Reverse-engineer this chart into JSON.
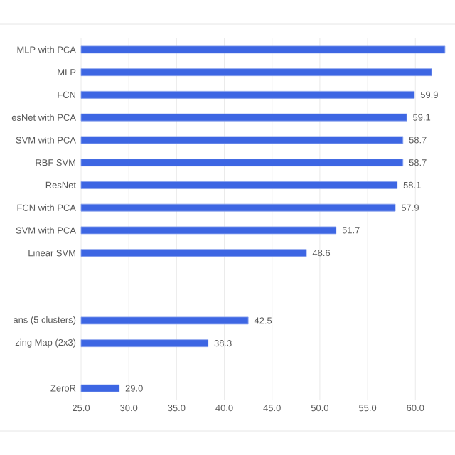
{
  "chart_data": {
    "type": "bar",
    "orientation": "horizontal",
    "categories": [
      "MLP with PCA",
      "MLP",
      "FCN",
      "esNet with PCA",
      "SVM with PCA",
      "RBF SVM",
      "ResNet",
      "FCN with PCA",
      "SVM with PCA",
      "Linear SVM",
      null,
      null,
      "ans (5 clusters)",
      "zing Map (2x3)",
      null,
      "ZeroR"
    ],
    "values": [
      63.1,
      61.7,
      59.9,
      59.1,
      58.7,
      58.7,
      58.1,
      57.9,
      51.7,
      48.6,
      null,
      null,
      42.5,
      38.3,
      null,
      29.0
    ],
    "value_labels": [
      null,
      null,
      "59.9",
      "59.1",
      "58.7",
      "58.7",
      "58.1",
      "57.9",
      "51.7",
      "48.6",
      null,
      null,
      "42.5",
      "38.3",
      null,
      "29.0"
    ],
    "color": "#3d66e3",
    "xlim": [
      25,
      64
    ],
    "xticks": [
      {
        "value": 25,
        "label": "25.0"
      },
      {
        "value": 30,
        "label": "30.0"
      },
      {
        "value": 35,
        "label": "35.0"
      },
      {
        "value": 40,
        "label": "40.0"
      },
      {
        "value": 45,
        "label": "45.0"
      },
      {
        "value": 50,
        "label": "50.0"
      },
      {
        "value": 55,
        "label": "55.0"
      },
      {
        "value": 60,
        "label": "60.0"
      }
    ],
    "grid": "x"
  }
}
